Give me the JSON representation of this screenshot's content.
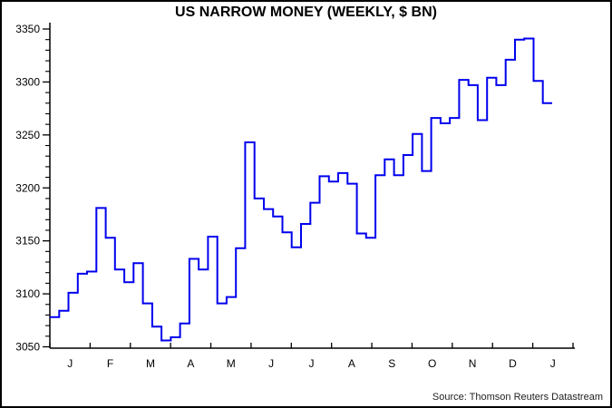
{
  "window": {
    "background": "#ffffff",
    "border_color": "#000000"
  },
  "chart_data": {
    "type": "line",
    "line_style": "step-after",
    "title": "US NARROW MONEY (WEEKLY, $ BN)",
    "line_color": "#0000ee",
    "axis_color": "#000000",
    "grid": "off",
    "legend": "none",
    "ylim": [
      3050,
      3350
    ],
    "y_ticks": [
      3050,
      3100,
      3150,
      3200,
      3250,
      3300,
      3350
    ],
    "y_minor_step": 10,
    "x_month_labels": [
      "J",
      "F",
      "M",
      "A",
      "M",
      "J",
      "J",
      "A",
      "S",
      "O",
      "N",
      "D",
      "J"
    ],
    "x_unit": "weekly",
    "values": [
      3078,
      3084,
      3101,
      3119,
      3121,
      3181,
      3153,
      3123,
      3111,
      3129,
      3091,
      3069,
      3056,
      3059,
      3072,
      3133,
      3123,
      3154,
      3091,
      3097,
      3143,
      3243,
      3190,
      3180,
      3173,
      3158,
      3144,
      3166,
      3186,
      3211,
      3206,
      3214,
      3204,
      3157,
      3153,
      3212,
      3227,
      3212,
      3231,
      3251,
      3216,
      3266,
      3261,
      3266,
      3302,
      3297,
      3264,
      3304,
      3297,
      3321,
      3340,
      3341,
      3301,
      3280
    ],
    "source_note": "Source: Thomson Reuters Datastream"
  }
}
